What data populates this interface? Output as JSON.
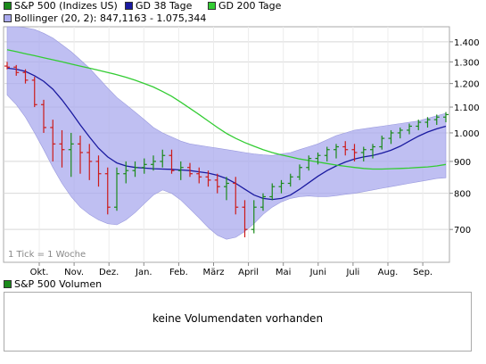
{
  "legend": {
    "items": [
      {
        "label": "S&P 500 (Indizes US)",
        "color": "#1a8a1a"
      },
      {
        "label": "GD 38 Tage",
        "color": "#1a1aa0"
      },
      {
        "label": "GD 200 Tage",
        "color": "#33cc33"
      }
    ],
    "bollinger": {
      "label": "Bollinger (20, 2): 847,1163 - 1.075,344",
      "color": "#aaaaee"
    }
  },
  "chart_data": {
    "type": "line",
    "yscale": "log",
    "ylim": [
      620,
      1480
    ],
    "y_ticks": [
      {
        "value": 700,
        "label": "700"
      },
      {
        "value": 800,
        "label": "800"
      },
      {
        "value": 900,
        "label": "900"
      },
      {
        "value": 1000,
        "label": "1.000"
      },
      {
        "value": 1100,
        "label": "1.100"
      },
      {
        "value": 1200,
        "label": "1.200"
      },
      {
        "value": 1300,
        "label": "1.300"
      },
      {
        "value": 1400,
        "label": "1.400"
      }
    ],
    "x_labels": [
      "Okt.",
      "Nov.",
      "Dez.",
      "Jan.",
      "Feb.",
      "März",
      "April",
      "Mai",
      "Juni",
      "Juli",
      "Aug.",
      "Sep."
    ],
    "tick_note": "1 Tick = 1 Woche",
    "series": [
      {
        "name": "S&P 500 (Indizes US)",
        "kind": "ohlc",
        "values": [
          [
            1280,
            1300,
            1265,
            1275
          ],
          [
            1275,
            1285,
            1235,
            1250
          ],
          [
            1250,
            1265,
            1200,
            1215
          ],
          [
            1215,
            1230,
            1100,
            1110
          ],
          [
            1110,
            1130,
            1000,
            1020
          ],
          [
            1020,
            1050,
            900,
            960
          ],
          [
            960,
            1010,
            880,
            940
          ],
          [
            940,
            1000,
            850,
            960
          ],
          [
            960,
            990,
            860,
            930
          ],
          [
            930,
            960,
            840,
            900
          ],
          [
            900,
            920,
            820,
            860
          ],
          [
            860,
            880,
            740,
            760
          ],
          [
            760,
            880,
            750,
            860
          ],
          [
            860,
            900,
            830,
            870
          ],
          [
            870,
            900,
            850,
            880
          ],
          [
            880,
            910,
            860,
            890
          ],
          [
            890,
            920,
            870,
            900
          ],
          [
            900,
            940,
            880,
            920
          ],
          [
            920,
            940,
            860,
            870
          ],
          [
            870,
            900,
            840,
            880
          ],
          [
            880,
            895,
            850,
            860
          ],
          [
            860,
            880,
            830,
            850
          ],
          [
            850,
            870,
            820,
            840
          ],
          [
            840,
            860,
            800,
            820
          ],
          [
            820,
            850,
            780,
            830
          ],
          [
            830,
            850,
            740,
            760
          ],
          [
            760,
            780,
            680,
            700
          ],
          [
            700,
            780,
            690,
            760
          ],
          [
            760,
            800,
            750,
            790
          ],
          [
            790,
            830,
            780,
            820
          ],
          [
            820,
            840,
            800,
            830
          ],
          [
            830,
            860,
            820,
            850
          ],
          [
            850,
            890,
            840,
            880
          ],
          [
            880,
            920,
            870,
            910
          ],
          [
            910,
            930,
            890,
            920
          ],
          [
            920,
            950,
            900,
            940
          ],
          [
            940,
            960,
            910,
            950
          ],
          [
            950,
            970,
            920,
            940
          ],
          [
            940,
            960,
            900,
            930
          ],
          [
            930,
            950,
            900,
            940
          ],
          [
            940,
            960,
            910,
            950
          ],
          [
            950,
            990,
            940,
            980
          ],
          [
            980,
            1010,
            960,
            1000
          ],
          [
            1000,
            1020,
            980,
            1010
          ],
          [
            1010,
            1035,
            995,
            1025
          ],
          [
            1025,
            1050,
            1010,
            1040
          ],
          [
            1040,
            1060,
            1020,
            1050
          ],
          [
            1050,
            1070,
            1030,
            1060
          ],
          [
            1060,
            1080,
            1040,
            1070
          ]
        ]
      },
      {
        "name": "GD 38 Tage",
        "kind": "line",
        "color": "#1a1aa0",
        "values": [
          1270,
          1265,
          1255,
          1235,
          1210,
          1175,
          1130,
          1080,
          1030,
          985,
          945,
          915,
          895,
          885,
          880,
          878,
          876,
          875,
          874,
          872,
          870,
          866,
          862,
          855,
          845,
          830,
          812,
          795,
          785,
          782,
          785,
          795,
          812,
          832,
          852,
          870,
          885,
          898,
          908,
          915,
          920,
          928,
          938,
          952,
          970,
          988,
          1003,
          1015,
          1025
        ]
      },
      {
        "name": "GD 200 Tage",
        "kind": "line",
        "color": "#33cc33",
        "values": [
          1360,
          1350,
          1340,
          1330,
          1320,
          1310,
          1300,
          1290,
          1280,
          1270,
          1260,
          1250,
          1240,
          1228,
          1215,
          1200,
          1185,
          1165,
          1145,
          1120,
          1095,
          1070,
          1045,
          1020,
          998,
          980,
          965,
          952,
          940,
          930,
          922,
          915,
          908,
          903,
          898,
          893,
          888,
          884,
          880,
          877,
          875,
          875,
          876,
          877,
          878,
          880,
          882,
          885,
          890
        ]
      },
      {
        "name": "Bollinger (20, 2)",
        "kind": "band",
        "color": "#aaaaee",
        "upper": [
          1480,
          1480,
          1475,
          1465,
          1445,
          1420,
          1385,
          1350,
          1310,
          1270,
          1225,
          1180,
          1140,
          1110,
          1080,
          1050,
          1020,
          1000,
          985,
          970,
          960,
          955,
          950,
          945,
          940,
          935,
          930,
          925,
          922,
          920,
          925,
          930,
          940,
          950,
          960,
          975,
          990,
          1000,
          1010,
          1015,
          1020,
          1025,
          1030,
          1035,
          1040,
          1045,
          1055,
          1065,
          1075
        ],
        "lower": [
          1150,
          1110,
          1060,
          1000,
          940,
          880,
          830,
          790,
          760,
          740,
          725,
          715,
          712,
          725,
          745,
          770,
          795,
          810,
          800,
          780,
          755,
          730,
          705,
          685,
          675,
          680,
          695,
          715,
          740,
          760,
          775,
          785,
          790,
          792,
          790,
          790,
          793,
          797,
          800,
          805,
          810,
          815,
          820,
          825,
          830,
          835,
          840,
          845,
          847
        ]
      }
    ]
  },
  "volume_panel": {
    "title": "S&P 500 Volumen",
    "color": "#1a8a1a",
    "message": "keine Volumendaten vorhanden"
  }
}
